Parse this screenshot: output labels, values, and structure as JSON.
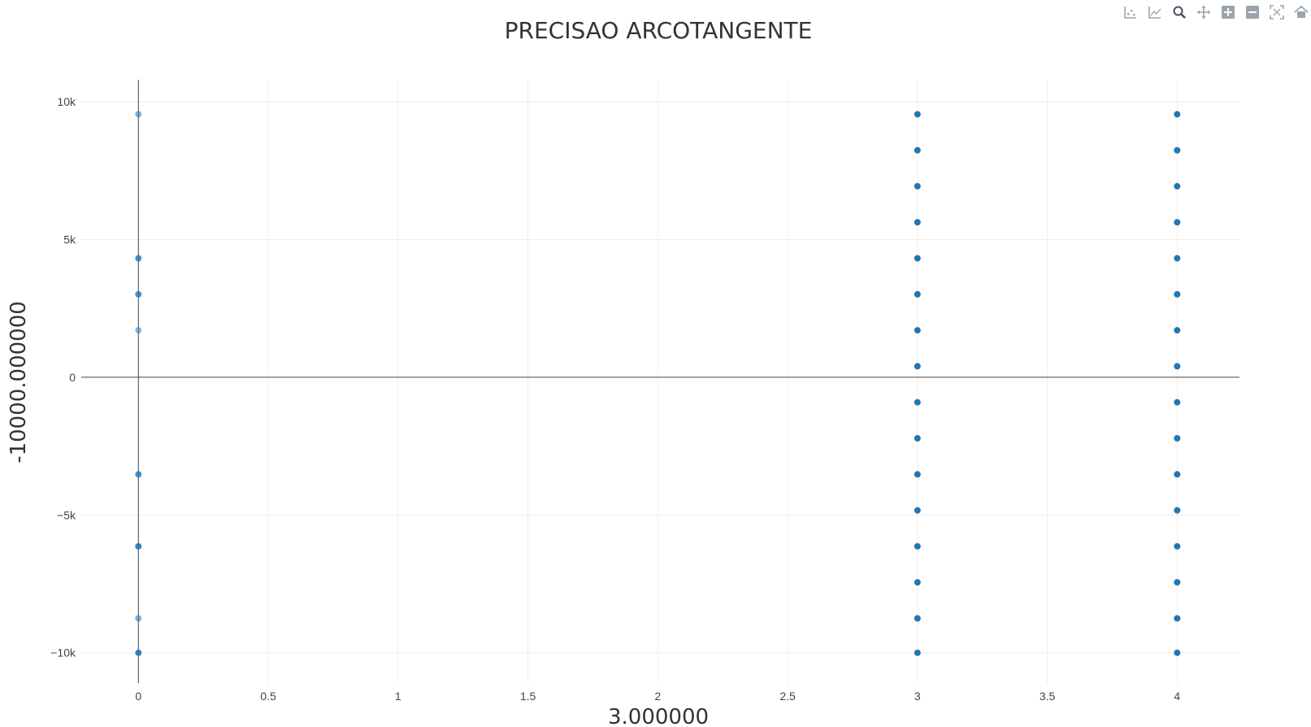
{
  "toolbar": {
    "icons": [
      "scatter-icon",
      "line-icon",
      "zoom-icon",
      "pan-icon",
      "zoom-in-icon",
      "zoom-out-icon",
      "autoscale-icon",
      "home-icon"
    ]
  },
  "chart_data": {
    "type": "scatter",
    "title": "PRECISAO ARCOTANGENTE",
    "xlabel": "3.000000",
    "ylabel": "-10000.000000",
    "xlim": [
      -0.22,
      4.24
    ],
    "ylim": [
      -11100,
      10800
    ],
    "x_ticks": [
      0,
      0.5,
      1,
      1.5,
      2,
      2.5,
      3,
      3.5,
      4
    ],
    "x_tick_labels": [
      "0",
      "0.5",
      "1",
      "1.5",
      "2",
      "2.5",
      "3",
      "3.5",
      "4"
    ],
    "y_ticks": [
      -10000,
      -5000,
      0,
      5000,
      10000
    ],
    "y_tick_labels": [
      "−10k",
      "−5k",
      "0",
      "5k",
      "10k"
    ],
    "grid": true,
    "marker_color": "#1f77b4",
    "series": [
      {
        "x": [
          0,
          0,
          0,
          0,
          0,
          0,
          0,
          0
        ],
        "y": [
          9545,
          4318,
          3011,
          1705,
          -3523,
          -6136,
          -8750,
          -10000
        ],
        "opacity": [
          0.55,
          0.8,
          0.8,
          0.5,
          0.8,
          0.9,
          0.55,
          0.9
        ]
      },
      {
        "x": [
          3,
          3,
          3,
          3,
          3,
          3,
          3,
          3,
          3,
          3,
          3,
          3,
          3,
          3,
          3,
          3
        ],
        "y": [
          9545,
          8239,
          6932,
          5625,
          4318,
          3011,
          1705,
          398,
          -909,
          -2216,
          -3523,
          -4830,
          -6136,
          -7443,
          -8750,
          -10000
        ],
        "opacity": [
          1,
          1,
          1,
          1,
          1,
          1,
          1,
          1,
          1,
          1,
          1,
          1,
          1,
          1,
          1,
          1
        ]
      },
      {
        "x": [
          4,
          4,
          4,
          4,
          4,
          4,
          4,
          4,
          4,
          4,
          4,
          4,
          4,
          4,
          4,
          4
        ],
        "y": [
          9545,
          8239,
          6932,
          5625,
          4318,
          3011,
          1705,
          398,
          -909,
          -2216,
          -3523,
          -4830,
          -6136,
          -7443,
          -8750,
          -10000
        ],
        "opacity": [
          1,
          1,
          1,
          1,
          1,
          1,
          1,
          1,
          1,
          1,
          1,
          1,
          1,
          1,
          1,
          1
        ]
      }
    ]
  }
}
